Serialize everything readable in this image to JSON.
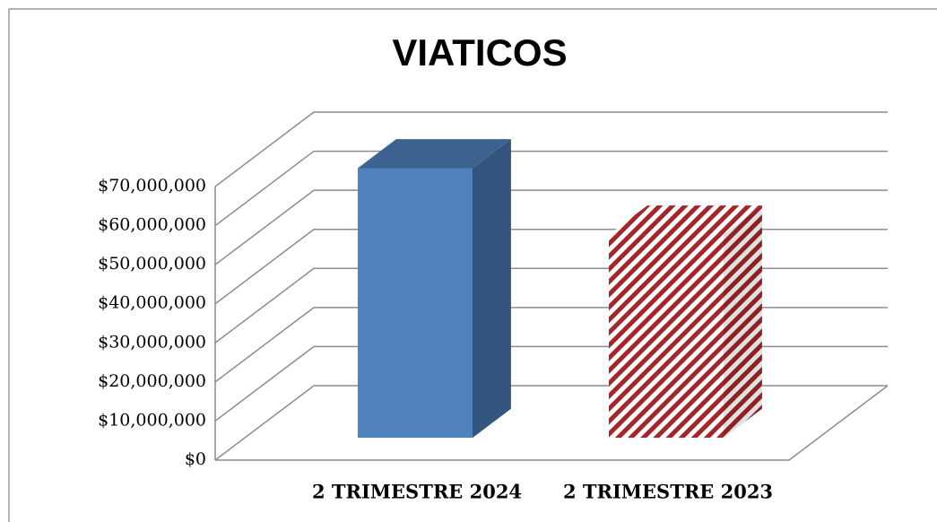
{
  "chart_data": {
    "type": "bar3d",
    "title": "VIATICOS",
    "categories": [
      "2 TRIMESTRE 2024",
      "2 TRIMESTRE 2023"
    ],
    "values": [
      69000000,
      52000000
    ],
    "colors": [
      "#4f81bd",
      "#a3262b"
    ],
    "ylim": [
      0,
      70000000
    ],
    "yticks": [
      {
        "value": 0,
        "label": "$0"
      },
      {
        "value": 10000000,
        "label": "$10,000,000"
      },
      {
        "value": 20000000,
        "label": "$20,000,000"
      },
      {
        "value": 30000000,
        "label": "$30,000,000"
      },
      {
        "value": 40000000,
        "label": "$40,000,000"
      },
      {
        "value": 50000000,
        "label": "$50,000,000"
      },
      {
        "value": 60000000,
        "label": "$60,000,000"
      },
      {
        "value": 70000000,
        "label": "$70,000,000"
      }
    ],
    "grid": true
  }
}
